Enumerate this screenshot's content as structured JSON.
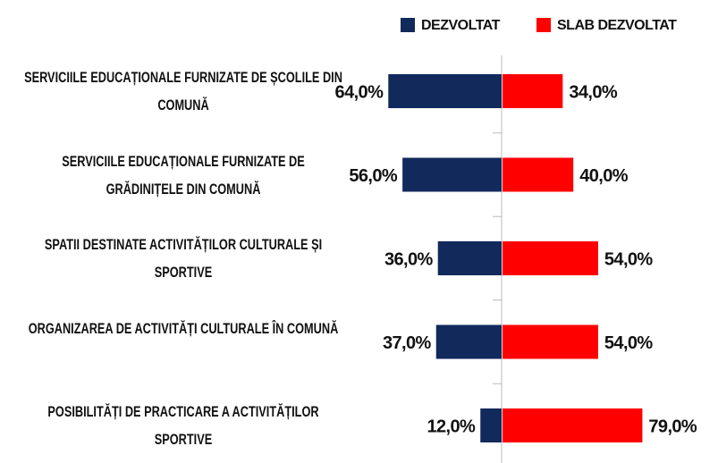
{
  "chart_data": {
    "type": "diverging_bar",
    "categories": [
      "SERVICIILE EDUCAȚIONALE FURNIZATE DE ȘCOLILE DIN COMUNĂ",
      "SERVICIILE EDUCAȚIONALE FURNIZATE DE GRĂDINIȚELE DIN COMUNĂ",
      "SPATII DESTINATE ACTIVITĂȚILOR CULTURALE ȘI SPORTIVE",
      "ORGANIZAREA DE ACTIVITĂȚI CULTURALE ÎN COMUNĂ",
      "POSIBILITĂȚI DE PRACTICARE A ACTIVITĂȚILOR SPORTIVE"
    ],
    "series": [
      {
        "name": "DEZVOLTAT",
        "color": "#12295c",
        "values": [
          64,
          56,
          36,
          37,
          12
        ],
        "value_labels": [
          "64,0%",
          "56,0%",
          "36,0%",
          "37,0%",
          "12,0%"
        ]
      },
      {
        "name": "SLAB DEZVOLTAT",
        "color": "#ff0000",
        "values": [
          34,
          40,
          54,
          54,
          79
        ],
        "value_labels": [
          "34,0%",
          "40,0%",
          "54,0%",
          "54,0%",
          "79,0%"
        ]
      }
    ],
    "legend": "top"
  }
}
